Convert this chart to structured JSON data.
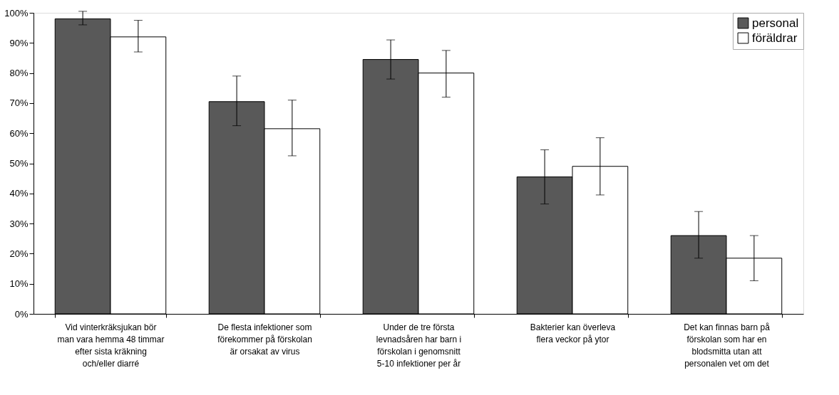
{
  "chart_data": {
    "type": "bar",
    "categories": [
      "Vid vinterkräksjukan bör man vara hemma 48 timmar efter sista kräkning och/eller diarré",
      "De flesta infektioner som förekommer på förskolan är orsakat av virus",
      "Under de tre första levnadsåren har barn i förskolan i genomsnitt 5-10 infektioner per år",
      "Bakterier kan överleva flera veckor på ytor",
      "Det kan finnas barn på förskolan som har en blodsmitta utan att personalen vet om det"
    ],
    "series": [
      {
        "name": "personal",
        "color": "#595959",
        "values": [
          98,
          70.5,
          84.5,
          45.5,
          26
        ],
        "errors": [
          [
            96,
            100.5
          ],
          [
            62.5,
            79
          ],
          [
            78,
            91
          ],
          [
            36.5,
            54.5
          ],
          [
            18.5,
            34
          ]
        ]
      },
      {
        "name": "föräldrar",
        "color": "#ffffff",
        "values": [
          92,
          61.5,
          80,
          49,
          18.5
        ],
        "errors": [
          [
            87,
            97.5
          ],
          [
            52.5,
            71
          ],
          [
            72,
            87.5
          ],
          [
            39.5,
            58.5
          ],
          [
            11,
            26
          ]
        ]
      }
    ],
    "ylim": [
      0,
      100
    ],
    "yticks": [
      {
        "value": 0,
        "label": "0%"
      },
      {
        "value": 10,
        "label": "10%"
      },
      {
        "value": 20,
        "label": "20%"
      },
      {
        "value": 30,
        "label": "30%"
      },
      {
        "value": 40,
        "label": "40%"
      },
      {
        "value": 50,
        "label": "50%"
      },
      {
        "value": 60,
        "label": "60%"
      },
      {
        "value": 70,
        "label": "70%"
      },
      {
        "value": 80,
        "label": "80%"
      },
      {
        "value": 90,
        "label": "90%"
      },
      {
        "value": 100,
        "label": "100%"
      }
    ],
    "legend": "top right",
    "grid": false
  }
}
